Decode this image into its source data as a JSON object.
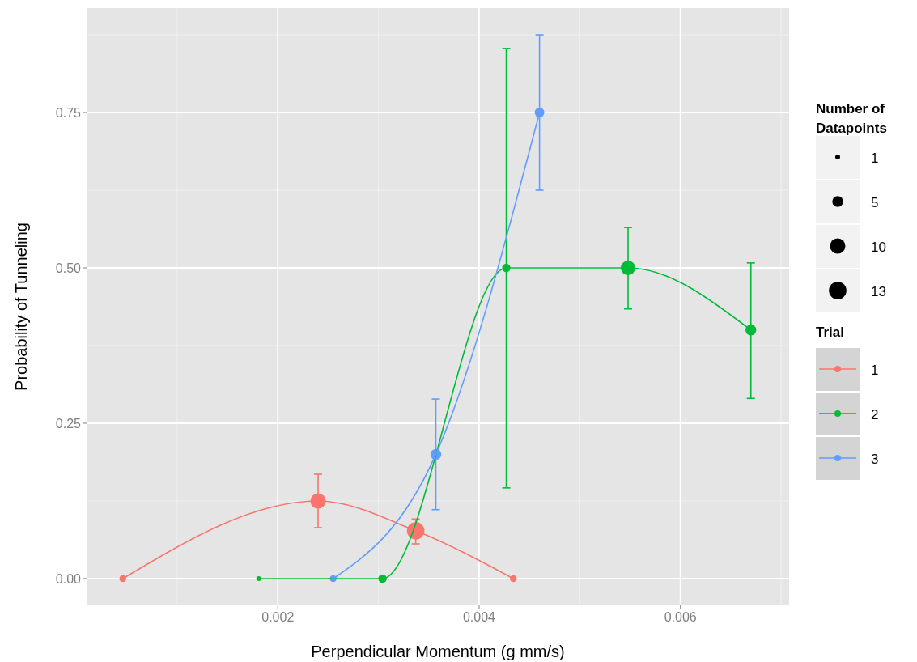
{
  "chart_data": {
    "type": "bubble",
    "xlabel": "Perpendicular Momentum (g mm/s)",
    "ylabel": "Probability of Tunneling",
    "legend_title": "Trial",
    "annotations": [
      "Number of\nDatapoints"
    ],
    "xlim": [
      0.0001,
      0.00708
    ],
    "ylim": [
      -0.043,
      0.918
    ],
    "xticks": [
      0.002,
      0.004,
      0.006
    ],
    "yticks": [
      {
        "value": 0,
        "label": "0.00"
      },
      {
        "value": 0.25,
        "label": "0.25"
      },
      {
        "value": 0.5,
        "label": "0.50"
      },
      {
        "value": 0.75,
        "label": "0.75"
      }
    ],
    "grid": true,
    "legend": "right",
    "marker": "circle",
    "line_style": "solid",
    "size_legend": [
      1,
      5,
      10,
      13
    ],
    "series": [
      {
        "name": "1",
        "color": "#f8766d",
        "x": [
          0.00046,
          0.0024,
          0.00337,
          0.00434
        ],
        "values": [
          0,
          0.125,
          0.077,
          0
        ],
        "sizes": [
          2,
          10,
          13,
          2
        ],
        "errors": [
          null,
          [
            0.082,
            0.168
          ],
          [
            0.056,
            0.096
          ],
          null
        ]
      },
      {
        "name": "2",
        "color": "#00ba38",
        "x": [
          0.00181,
          0.00304,
          0.00427,
          0.00548,
          0.0067
        ],
        "values": [
          0,
          0,
          0.5,
          0.5,
          0.4
        ],
        "sizes": [
          1,
          3,
          3,
          9,
          5
        ],
        "errors": [
          null,
          null,
          [
            0.146,
            0.853
          ],
          [
            0.434,
            0.565
          ],
          [
            0.29,
            0.508
          ]
        ]
      },
      {
        "name": "3",
        "color": "#619cff",
        "x": [
          0.00255,
          0.00357,
          0.0046
        ],
        "values": [
          0,
          0.2,
          0.75
        ],
        "sizes": [
          2,
          5,
          4
        ],
        "errors": [
          null,
          [
            0.111,
            0.289
          ],
          [
            0.625,
            0.875
          ]
        ]
      },
      {
        "type": "line",
        "marker": "none",
        "color": "#f8766d",
        "x": [
          0.00046,
          0.0024,
          0.00337,
          0.00434
        ],
        "values": [
          0,
          0.125,
          0.077,
          0
        ]
      },
      {
        "type": "line",
        "marker": "none",
        "color": "#00ba38",
        "x": [
          0.00181,
          0.00304,
          0.00427,
          0.00548,
          0.0067
        ],
        "values": [
          0,
          0,
          0.5,
          0.5,
          0.4
        ]
      },
      {
        "type": "line",
        "marker": "none",
        "color": "#619cff",
        "x": [
          0.00255,
          0.00357,
          0.0046
        ],
        "values": [
          0,
          0.2,
          0.75
        ]
      }
    ]
  }
}
